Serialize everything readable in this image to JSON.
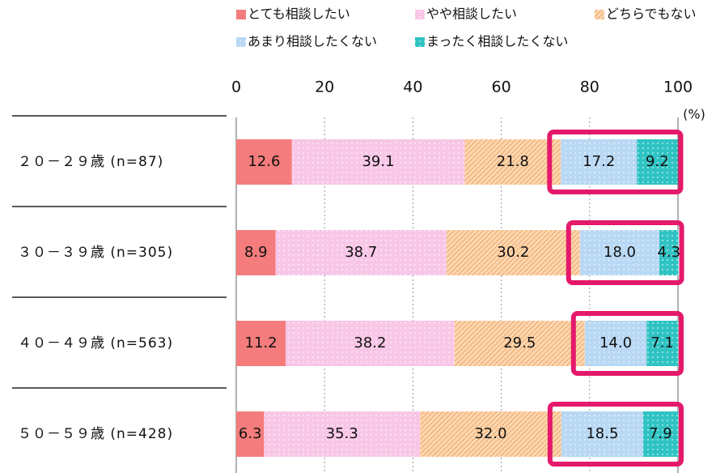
{
  "chart_data": {
    "type": "stacked-bar-horizontal",
    "categories": [
      "２０－２９歳 (n=87)",
      "３０－３９歳 (n=305)",
      "４０－４９歳 (n=563)",
      "５０－５９歳 (n=428)"
    ],
    "series": [
      {
        "name": "とても相談したい",
        "color": "#f47c7c",
        "values": [
          12.6,
          8.9,
          11.2,
          6.3
        ],
        "value_labels": [
          "12.6",
          "8.9",
          "11.2",
          "6.3"
        ]
      },
      {
        "name": "やや相談したい",
        "color": "#f8c6e6",
        "values": [
          39.1,
          38.7,
          38.2,
          35.3
        ],
        "value_labels": [
          "39.1",
          "38.7",
          "38.2",
          "35.3"
        ]
      },
      {
        "name": "どちらでもない",
        "color": "#fbd7b2",
        "values": [
          21.8,
          30.2,
          29.5,
          32.0
        ],
        "value_labels": [
          "21.8",
          "30.2",
          "29.5",
          "32.0"
        ]
      },
      {
        "name": "あまり相談したくない",
        "color": "#b8d8f4",
        "values": [
          17.2,
          18.0,
          14.0,
          18.5
        ],
        "value_labels": [
          "17.2",
          "18.0",
          "14.0",
          "18.5"
        ]
      },
      {
        "name": "まったく相談したくない",
        "color": "#2fc3c3",
        "values": [
          9.2,
          4.3,
          7.1,
          7.9
        ],
        "value_labels": [
          "9.2",
          "4.3",
          "7.1",
          "7.9"
        ]
      }
    ],
    "xlim": [
      0,
      100
    ],
    "xticks": [
      0,
      20,
      40,
      60,
      80,
      100
    ],
    "x_unit": "(%)",
    "grid": true
  }
}
